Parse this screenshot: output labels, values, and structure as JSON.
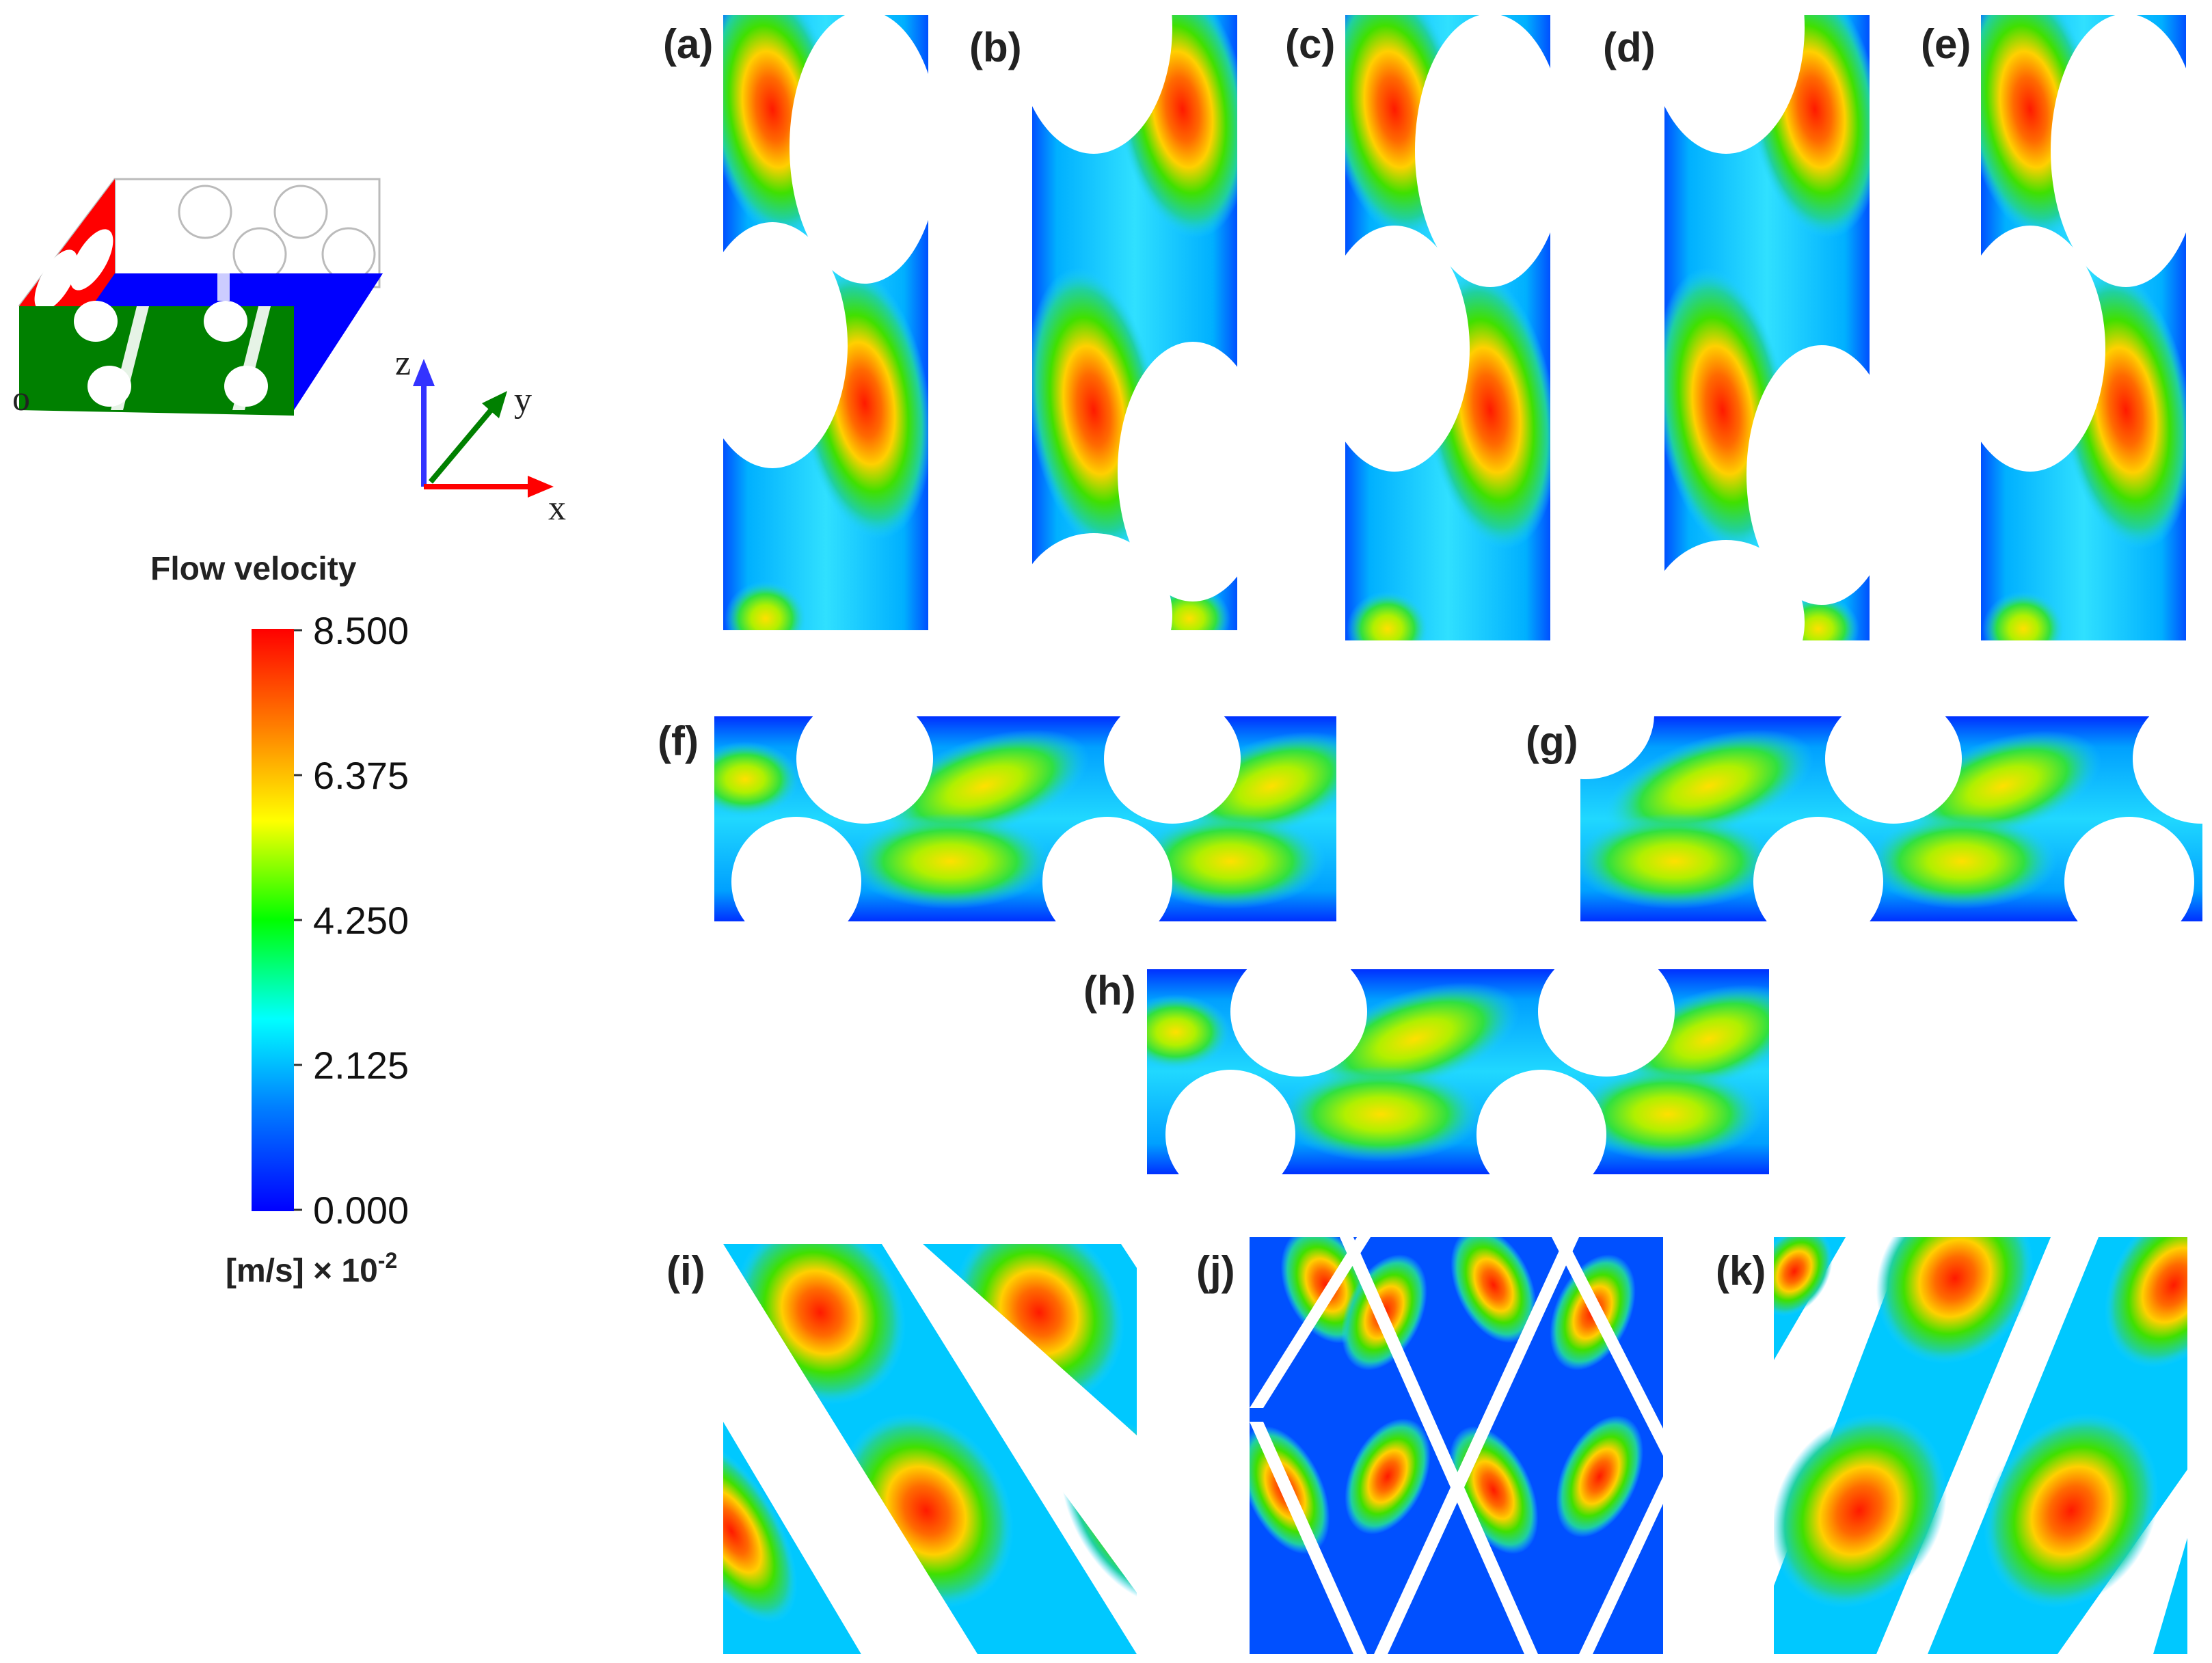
{
  "colorbar": {
    "title": "Flow velocity",
    "ticks": [
      "8.500",
      "6.375",
      "4.250",
      "2.125",
      "0.000"
    ],
    "unit_main": "[m/s] × 10",
    "unit_exp": "-2",
    "range": [
      0,
      8.5
    ],
    "colors": [
      "#0000ff",
      "#00a0ff",
      "#00ffff",
      "#00ff00",
      "#ffff00",
      "#ff8000",
      "#ff0000"
    ]
  },
  "axes": {
    "x": "x",
    "y": "y",
    "z": "z",
    "origin": "o"
  },
  "panel_labels": {
    "a": "(a)",
    "b": "(b)",
    "c": "(c)",
    "d": "(d)",
    "e": "(e)",
    "f": "(f)",
    "g": "(g)",
    "h": "(h)",
    "i": "(i)",
    "j": "(j)",
    "k": "(k)"
  },
  "colors": {
    "inlet_face": "#ff0000",
    "side_face": "#008000",
    "bottom_face": "#0000ff",
    "x_axis": "#ff0000",
    "y_axis": "#008000",
    "z_axis": "#3333ff"
  }
}
